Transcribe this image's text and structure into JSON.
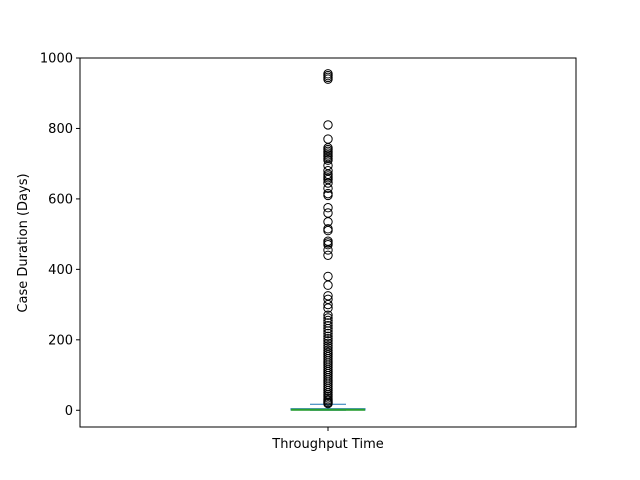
{
  "chart_data": {
    "type": "box",
    "xlabel": "",
    "ylabel": "Case Duration (Days)",
    "categories": [
      "Throughput Time"
    ],
    "ylim": [
      -47.5,
      1000
    ],
    "yticks": [
      0,
      200,
      400,
      600,
      800,
      1000
    ],
    "grid": false,
    "box": {
      "q1": 0.5,
      "median": 1.5,
      "q3": 4.5,
      "whisker_low": 0,
      "whisker_high": 17
    },
    "outliers": [
      955,
      950,
      945,
      940,
      810,
      770,
      745,
      740,
      735,
      730,
      725,
      720,
      715,
      710,
      695,
      680,
      670,
      665,
      660,
      655,
      645,
      630,
      615,
      610,
      575,
      560,
      535,
      515,
      510,
      480,
      475,
      470,
      455,
      440,
      380,
      355,
      325,
      315,
      300,
      290,
      270,
      262,
      255,
      248,
      240,
      232,
      225,
      218,
      210,
      203,
      197,
      190,
      183,
      177,
      170,
      164,
      158,
      152,
      146,
      140,
      134,
      128,
      122,
      116,
      110,
      104,
      98,
      92,
      86,
      80,
      74,
      68,
      62,
      56,
      50,
      45,
      40,
      35,
      30,
      26,
      22,
      19
    ],
    "colors": {
      "box": "#1f77b4",
      "median": "#2ca02c",
      "whisker": "#1f77b4",
      "outlier_edge": "#000000"
    }
  }
}
